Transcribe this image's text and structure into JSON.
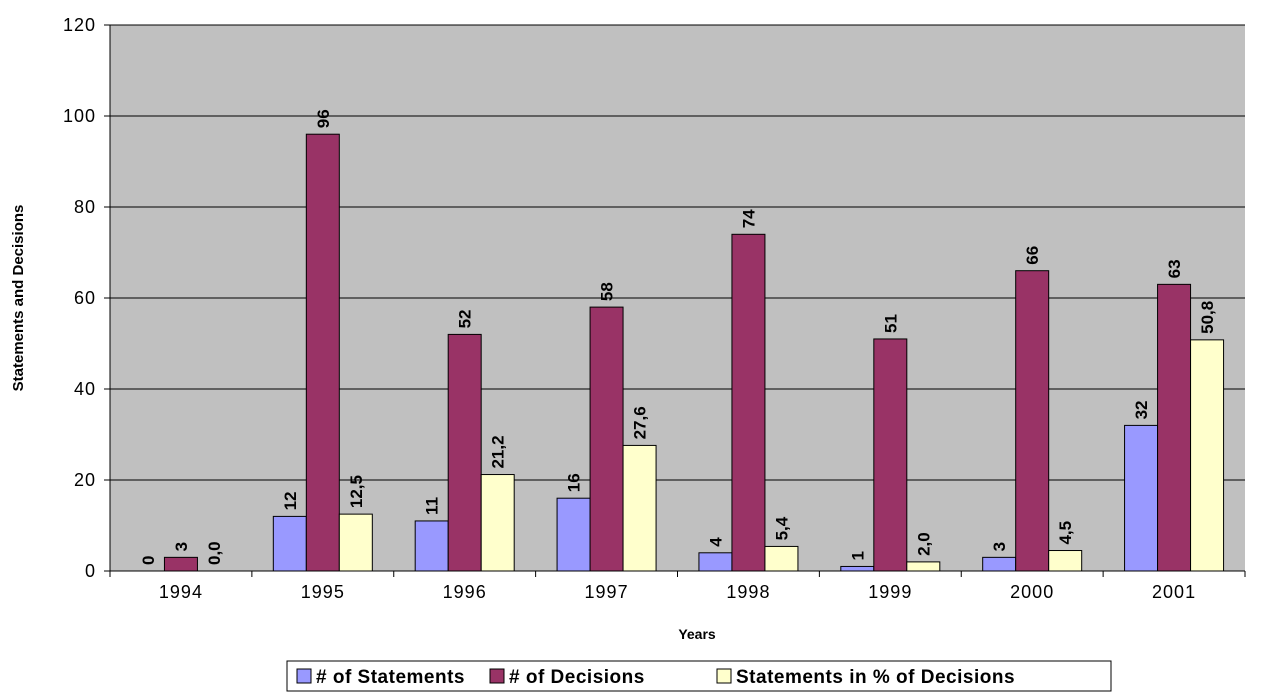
{
  "chart_data": {
    "type": "bar",
    "title": "",
    "xlabel": "Years",
    "ylabel": "Statements and Decisions",
    "ylim": [
      0,
      120
    ],
    "yticks": [
      0,
      20,
      40,
      60,
      80,
      100,
      120
    ],
    "grid": true,
    "legend_position": "bottom",
    "categories": [
      "1994",
      "1995",
      "1996",
      "1997",
      "1998",
      "1999",
      "2000",
      "2001"
    ],
    "series": [
      {
        "name": "# of Statements",
        "color": "#9999ff",
        "values": [
          0,
          12,
          11,
          16,
          4,
          1,
          3,
          32
        ],
        "labels": [
          "0",
          "12",
          "11",
          "16",
          "4",
          "1",
          "3",
          "32"
        ]
      },
      {
        "name": "# of Decisions",
        "color": "#993366",
        "values": [
          3,
          96,
          52,
          58,
          74,
          51,
          66,
          63
        ],
        "labels": [
          "3",
          "96",
          "52",
          "58",
          "74",
          "51",
          "66",
          "63"
        ]
      },
      {
        "name": "Statements in % of Decisions",
        "color": "#ffffcc",
        "values": [
          0.0,
          12.5,
          21.2,
          27.6,
          5.4,
          2.0,
          4.5,
          50.8
        ],
        "labels": [
          "0,0",
          "12,5",
          "21,2",
          "27,6",
          "5,4",
          "2,0",
          "4,5",
          "50,8"
        ]
      }
    ],
    "plot_background": "#c0c0c0"
  }
}
